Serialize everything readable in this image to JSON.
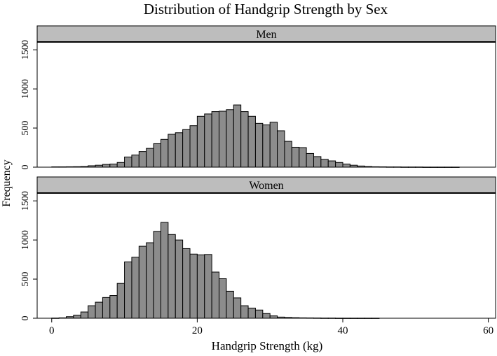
{
  "chart_data": {
    "type": "bar",
    "title": "Distribution of Handgrip Strength by Sex",
    "xlabel": "Handgrip Strength (kg)",
    "ylabel": "Frequency",
    "xlim": [
      -2,
      61
    ],
    "ylim": [
      0,
      1600
    ],
    "x_ticks": [
      0,
      20,
      40,
      60
    ],
    "y_ticks": [
      0,
      500,
      1000,
      1500
    ],
    "bin_width": 1,
    "bar_color": "#8c8c8c",
    "strip_color": "#bdbdbd",
    "panels": [
      {
        "name": "Men",
        "bins": [
          {
            "x": 0,
            "value": 4
          },
          {
            "x": 1,
            "value": 4
          },
          {
            "x": 2,
            "value": 5
          },
          {
            "x": 3,
            "value": 6
          },
          {
            "x": 4,
            "value": 8
          },
          {
            "x": 5,
            "value": 18
          },
          {
            "x": 6,
            "value": 25
          },
          {
            "x": 7,
            "value": 35
          },
          {
            "x": 8,
            "value": 40
          },
          {
            "x": 9,
            "value": 60
          },
          {
            "x": 10,
            "value": 130
          },
          {
            "x": 11,
            "value": 155
          },
          {
            "x": 12,
            "value": 200
          },
          {
            "x": 13,
            "value": 240
          },
          {
            "x": 14,
            "value": 300
          },
          {
            "x": 15,
            "value": 355
          },
          {
            "x": 16,
            "value": 420
          },
          {
            "x": 17,
            "value": 440
          },
          {
            "x": 18,
            "value": 480
          },
          {
            "x": 19,
            "value": 530
          },
          {
            "x": 20,
            "value": 650
          },
          {
            "x": 21,
            "value": 680
          },
          {
            "x": 22,
            "value": 710
          },
          {
            "x": 23,
            "value": 715
          },
          {
            "x": 24,
            "value": 735
          },
          {
            "x": 25,
            "value": 795
          },
          {
            "x": 26,
            "value": 710
          },
          {
            "x": 27,
            "value": 650
          },
          {
            "x": 28,
            "value": 560
          },
          {
            "x": 29,
            "value": 540
          },
          {
            "x": 30,
            "value": 575
          },
          {
            "x": 31,
            "value": 465
          },
          {
            "x": 32,
            "value": 330
          },
          {
            "x": 33,
            "value": 255
          },
          {
            "x": 34,
            "value": 250
          },
          {
            "x": 35,
            "value": 175
          },
          {
            "x": 36,
            "value": 135
          },
          {
            "x": 37,
            "value": 100
          },
          {
            "x": 38,
            "value": 80
          },
          {
            "x": 39,
            "value": 60
          },
          {
            "x": 40,
            "value": 40
          },
          {
            "x": 41,
            "value": 25
          },
          {
            "x": 42,
            "value": 15
          },
          {
            "x": 43,
            "value": 8
          },
          {
            "x": 44,
            "value": 5
          },
          {
            "x": 45,
            "value": 4
          },
          {
            "x": 46,
            "value": 3
          },
          {
            "x": 47,
            "value": 3
          },
          {
            "x": 48,
            "value": 2
          },
          {
            "x": 49,
            "value": 2
          },
          {
            "x": 50,
            "value": 2
          },
          {
            "x": 51,
            "value": 1
          },
          {
            "x": 52,
            "value": 1
          },
          {
            "x": 53,
            "value": 1
          },
          {
            "x": 54,
            "value": 1
          },
          {
            "x": 55,
            "value": 1
          }
        ]
      },
      {
        "name": "Women",
        "bins": [
          {
            "x": 0,
            "value": 2
          },
          {
            "x": 1,
            "value": 5
          },
          {
            "x": 2,
            "value": 20
          },
          {
            "x": 3,
            "value": 40
          },
          {
            "x": 4,
            "value": 80
          },
          {
            "x": 5,
            "value": 160
          },
          {
            "x": 6,
            "value": 205
          },
          {
            "x": 7,
            "value": 265
          },
          {
            "x": 8,
            "value": 290
          },
          {
            "x": 9,
            "value": 445
          },
          {
            "x": 10,
            "value": 720
          },
          {
            "x": 11,
            "value": 780
          },
          {
            "x": 12,
            "value": 920
          },
          {
            "x": 13,
            "value": 965
          },
          {
            "x": 14,
            "value": 1110
          },
          {
            "x": 15,
            "value": 1225
          },
          {
            "x": 16,
            "value": 1070
          },
          {
            "x": 17,
            "value": 1000
          },
          {
            "x": 18,
            "value": 890
          },
          {
            "x": 19,
            "value": 820
          },
          {
            "x": 20,
            "value": 810
          },
          {
            "x": 21,
            "value": 815
          },
          {
            "x": 22,
            "value": 590
          },
          {
            "x": 23,
            "value": 505
          },
          {
            "x": 24,
            "value": 345
          },
          {
            "x": 25,
            "value": 260
          },
          {
            "x": 26,
            "value": 160
          },
          {
            "x": 27,
            "value": 130
          },
          {
            "x": 28,
            "value": 105
          },
          {
            "x": 29,
            "value": 60
          },
          {
            "x": 30,
            "value": 30
          },
          {
            "x": 31,
            "value": 15
          },
          {
            "x": 32,
            "value": 10
          },
          {
            "x": 33,
            "value": 7
          },
          {
            "x": 34,
            "value": 5
          },
          {
            "x": 35,
            "value": 4
          },
          {
            "x": 36,
            "value": 3
          },
          {
            "x": 37,
            "value": 2
          },
          {
            "x": 38,
            "value": 2
          },
          {
            "x": 39,
            "value": 1
          },
          {
            "x": 40,
            "value": 1
          },
          {
            "x": 41,
            "value": 1
          },
          {
            "x": 42,
            "value": 1
          },
          {
            "x": 43,
            "value": 1
          },
          {
            "x": 44,
            "value": 1
          }
        ]
      }
    ]
  }
}
